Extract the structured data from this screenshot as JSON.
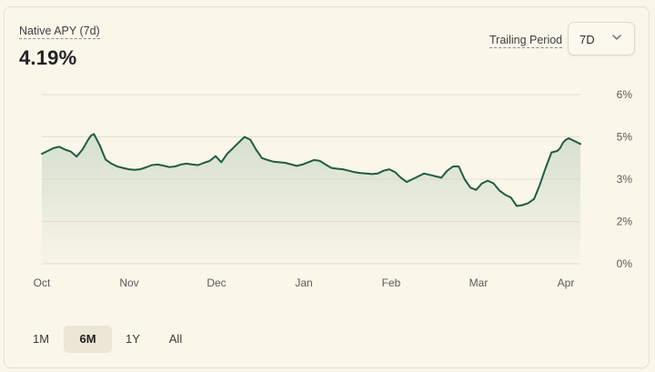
{
  "metric": {
    "label": "Native APY (7d)",
    "value": "4.19%"
  },
  "trailing": {
    "label": "Trailing Period",
    "selected": "7D"
  },
  "ranges": [
    "1M",
    "6M",
    "1Y",
    "All"
  ],
  "active_range": "6M",
  "colors": {
    "line": "#1f5c45",
    "fill_top": "#c9d8c6",
    "grid": "#e3ddcd"
  },
  "chart_data": {
    "type": "area",
    "xlabel": "",
    "ylabel": "",
    "x_ticks": [
      "Oct",
      "Nov",
      "Dec",
      "Jan",
      "Feb",
      "Mar",
      "Apr"
    ],
    "y_ticks": [
      "6%",
      "5%",
      "3%",
      "2%",
      "0%"
    ],
    "ylim": [
      0,
      6
    ],
    "x_domain": [
      0,
      186
    ],
    "grid": true,
    "series": [
      {
        "name": "",
        "x": [
          0,
          2,
          4,
          6,
          8,
          10,
          12,
          14,
          16,
          17,
          18,
          20,
          22,
          24,
          26,
          28,
          30,
          32,
          34,
          36,
          38,
          40,
          42,
          44,
          46,
          48,
          50,
          52,
          54,
          56,
          58,
          60,
          62,
          64,
          66,
          68,
          70,
          72,
          74,
          75,
          76,
          78,
          80,
          82,
          84,
          86,
          88,
          90,
          92,
          94,
          96,
          98,
          100,
          102,
          104,
          106,
          108,
          110,
          112,
          114,
          116,
          118,
          120,
          122,
          124,
          126,
          128,
          130,
          132,
          134,
          136,
          138,
          140,
          142,
          144,
          146,
          148,
          150,
          152,
          154,
          156,
          158,
          160,
          162,
          164,
          166,
          168,
          170,
          172,
          174,
          176,
          178,
          179,
          180,
          181,
          182,
          183,
          184,
          185,
          186
        ],
        "values": [
          3.9,
          4.0,
          4.1,
          4.15,
          4.05,
          3.98,
          3.8,
          4.05,
          4.4,
          4.55,
          4.6,
          4.2,
          3.7,
          3.55,
          3.45,
          3.4,
          3.35,
          3.33,
          3.35,
          3.42,
          3.5,
          3.52,
          3.48,
          3.43,
          3.45,
          3.52,
          3.55,
          3.52,
          3.5,
          3.58,
          3.65,
          3.82,
          3.6,
          3.9,
          4.1,
          4.3,
          4.5,
          4.4,
          4.05,
          3.9,
          3.75,
          3.68,
          3.62,
          3.6,
          3.58,
          3.53,
          3.47,
          3.52,
          3.6,
          3.68,
          3.65,
          3.52,
          3.4,
          3.37,
          3.35,
          3.3,
          3.25,
          3.22,
          3.2,
          3.18,
          3.2,
          3.3,
          3.35,
          3.25,
          3.05,
          2.9,
          3.0,
          3.1,
          3.2,
          3.15,
          3.1,
          3.05,
          3.3,
          3.45,
          3.45,
          3.0,
          2.7,
          2.62,
          2.85,
          2.95,
          2.85,
          2.6,
          2.45,
          2.35,
          2.05,
          2.08,
          2.15,
          2.3,
          2.8,
          3.4,
          3.95,
          4.0,
          4.1,
          4.3,
          4.4,
          4.45,
          4.4,
          4.35,
          4.3,
          4.25
        ]
      }
    ]
  }
}
